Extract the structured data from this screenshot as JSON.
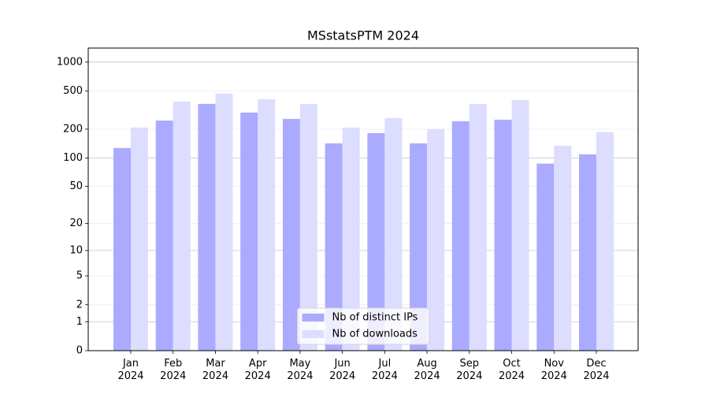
{
  "chart_data": {
    "type": "bar",
    "title": "MSstatsPTM 2024",
    "categories": [
      [
        "Jan",
        "2024"
      ],
      [
        "Feb",
        "2024"
      ],
      [
        "Mar",
        "2024"
      ],
      [
        "Apr",
        "2024"
      ],
      [
        "May",
        "2024"
      ],
      [
        "Jun",
        "2024"
      ],
      [
        "Jul",
        "2024"
      ],
      [
        "Aug",
        "2024"
      ],
      [
        "Sep",
        "2024"
      ],
      [
        "Oct",
        "2024"
      ],
      [
        "Nov",
        "2024"
      ],
      [
        "Dec",
        "2024"
      ]
    ],
    "series": [
      {
        "name": "Nb of distinct IPs",
        "color": "#aaaaff",
        "values": [
          127,
          246,
          367,
          298,
          256,
          142,
          182,
          142,
          242,
          251,
          87,
          109
        ]
      },
      {
        "name": "Nb of downloads",
        "color": "#ddddff",
        "values": [
          208,
          388,
          469,
          411,
          366,
          208,
          261,
          200,
          366,
          403,
          134,
          186
        ]
      }
    ],
    "yscale": "log1p",
    "ylim": [
      0,
      1400
    ],
    "yticks": [
      0,
      1,
      2,
      5,
      10,
      20,
      50,
      100,
      200,
      500,
      1000
    ],
    "grid": true,
    "legend": "lower center"
  }
}
